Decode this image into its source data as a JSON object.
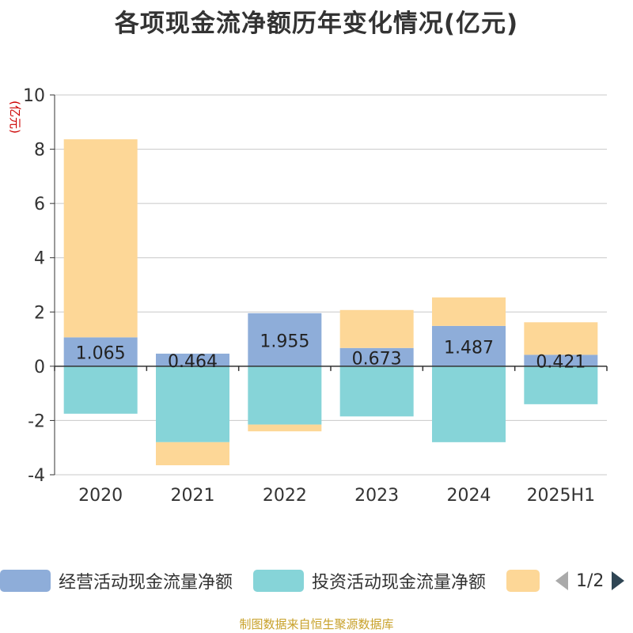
{
  "title": "各项现金流净额历年变化情况(亿元)",
  "source": "制图数据来自恒生聚源数据库",
  "legend_pager": {
    "text": "1/2"
  },
  "chart_data": {
    "type": "bar",
    "stacked": true,
    "title": "各项现金流净额历年变化情况(亿元)",
    "ylabel": "(亿元)",
    "ylim": [
      -4,
      10
    ],
    "yticks": [
      -4,
      -2,
      0,
      2,
      4,
      6,
      8,
      10
    ],
    "grid": true,
    "legend_position": "bottom",
    "categories": [
      "2020",
      "2021",
      "2022",
      "2023",
      "2024",
      "2025H1"
    ],
    "series": [
      {
        "name": "经营活动现金流量净额",
        "color": "#8eadd9",
        "values": [
          1.065,
          0.464,
          1.955,
          0.673,
          1.487,
          0.421
        ],
        "labels": [
          "1.065",
          "0.464",
          "1.955",
          "0.673",
          "1.487",
          "0.421"
        ]
      },
      {
        "name": "投资活动现金流量净额",
        "color": "#86d4d8",
        "values": [
          -1.75,
          -2.8,
          -2.15,
          -1.85,
          -2.8,
          -1.4
        ]
      },
      {
        "name": "",
        "color": "#fdd797",
        "values": [
          7.3,
          -0.85,
          -0.25,
          1.4,
          1.05,
          1.2
        ]
      }
    ]
  }
}
